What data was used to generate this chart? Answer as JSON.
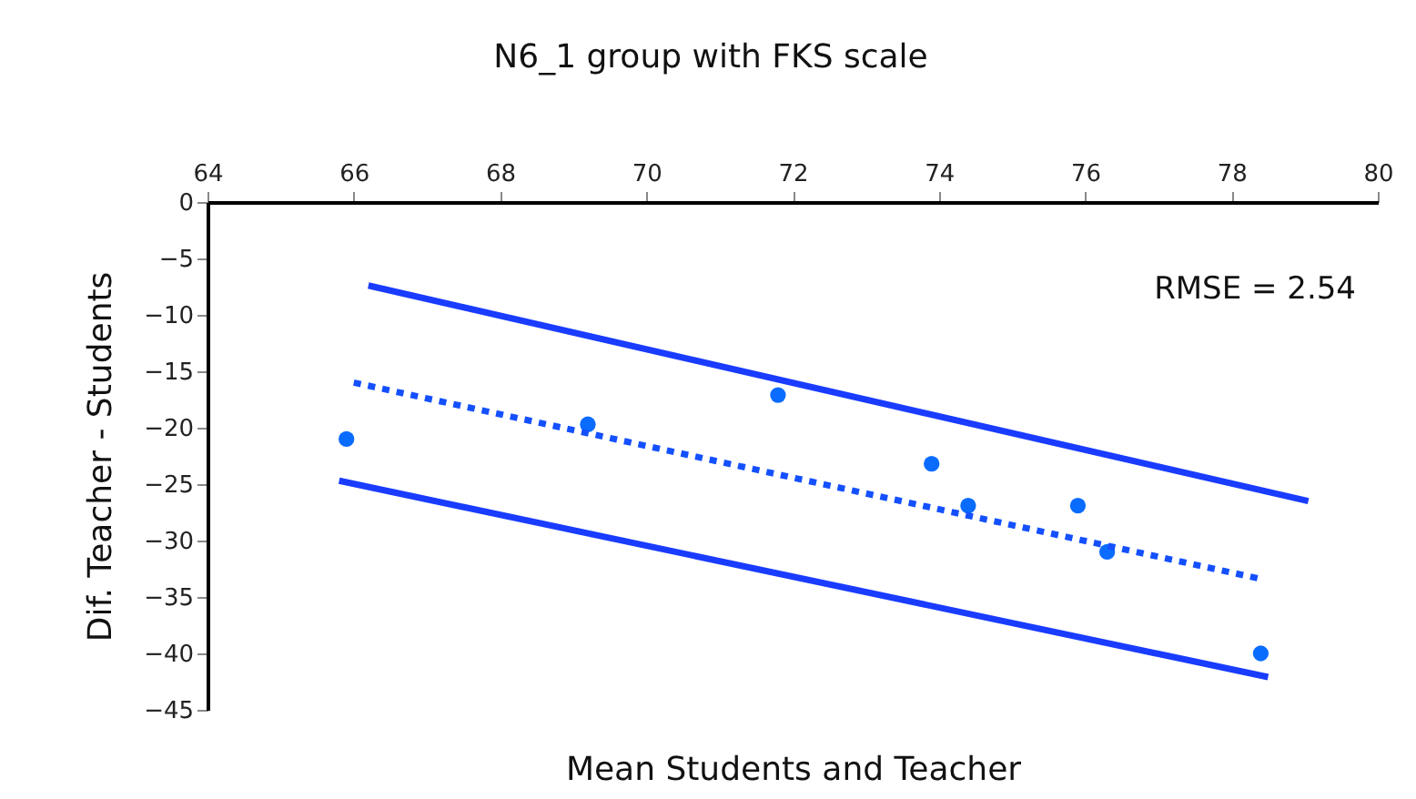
{
  "chart_data": {
    "type": "scatter",
    "title": "N6_1 group with FKS scale",
    "xlabel": "Mean Students and Teacher",
    "ylabel": "Dif. Teacher - Students",
    "xlim": [
      64,
      80
    ],
    "xticks": [
      64,
      66,
      68,
      70,
      72,
      74,
      76,
      78,
      80
    ],
    "ylim": [
      -45,
      0
    ],
    "yticks": [
      -45,
      -40,
      -35,
      -30,
      -25,
      -20,
      -15,
      -10,
      -5,
      0
    ],
    "annotations": [
      "RMSE = 2.54"
    ],
    "series": [
      {
        "type": "scatter",
        "color": "#0a6cff",
        "x": [
          65.9,
          69.2,
          71.8,
          73.9,
          74.4,
          75.9,
          76.3,
          78.4
        ],
        "values": [
          -21.0,
          -19.7,
          -17.1,
          -23.2,
          -26.9,
          -26.9,
          -31.0,
          -40.0
        ]
      },
      {
        "type": "line",
        "line_style": "dotted",
        "color": "#1450ff",
        "x": [
          66.0,
          78.4
        ],
        "values": [
          -16.0,
          -33.4
        ]
      },
      {
        "type": "line",
        "line_style": "solid",
        "color": "#1a3cff",
        "x": [
          66.2,
          79.05
        ],
        "values": [
          -7.4,
          -26.5
        ]
      },
      {
        "type": "line",
        "line_style": "solid",
        "color": "#1a3cff",
        "x": [
          65.8,
          78.5
        ],
        "values": [
          -24.7,
          -42.1
        ]
      }
    ]
  }
}
